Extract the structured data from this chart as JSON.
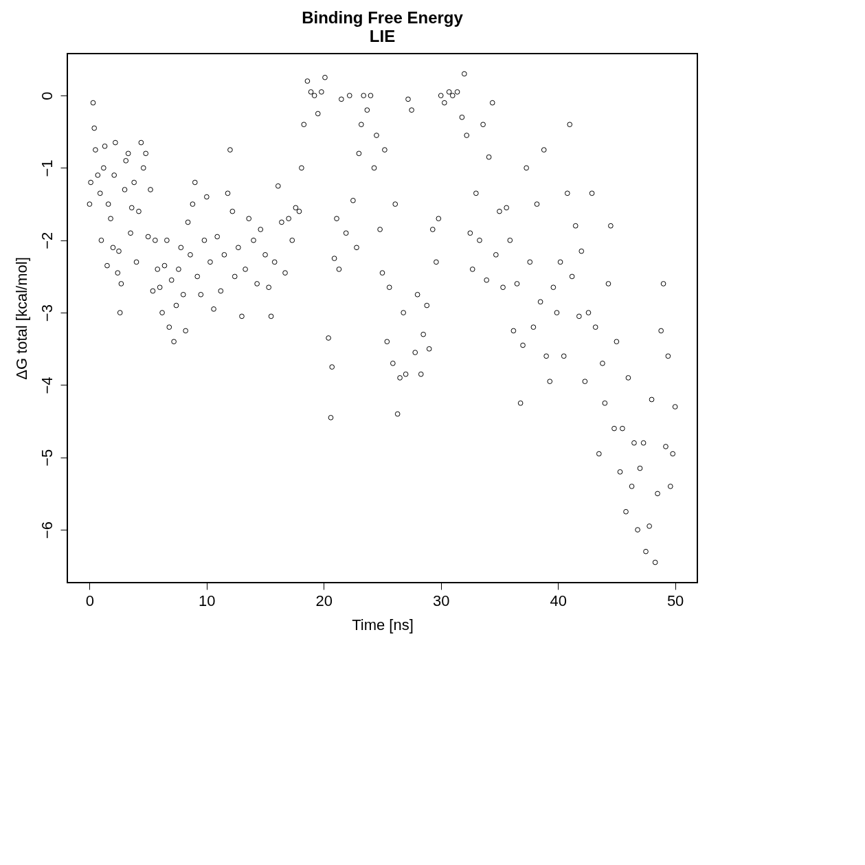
{
  "chart_data": {
    "type": "scatter",
    "title": "Binding Free Energy",
    "subtitle": "LIE",
    "xlabel": "Time [ns]",
    "ylabel": "ΔG total [kcal/mol]",
    "xlim": [
      -1.9,
      51.9
    ],
    "ylim": [
      -6.73,
      0.58
    ],
    "xticks": [
      0,
      10,
      20,
      30,
      40,
      50
    ],
    "yticks": [
      -6,
      -5,
      -4,
      -3,
      -2,
      -1,
      0
    ],
    "grid": false,
    "marker": "circle",
    "series": [
      {
        "color": "#000000",
        "x": [
          0,
          0.1,
          0.3,
          0.4,
          0.5,
          0.7,
          0.9,
          1,
          1.2,
          1.3,
          1.5,
          1.6,
          1.8,
          2,
          2.1,
          2.2,
          2.4,
          2.5,
          2.6,
          2.7,
          3.0,
          3.1,
          3.3,
          3.5,
          3.6,
          3.8,
          4.0,
          4.2,
          4.4,
          4.6,
          4.8,
          5,
          5.2,
          5.4,
          5.6,
          5.8,
          6.0,
          6.2,
          6.4,
          6.6,
          6.8,
          7.0,
          7.2,
          7.4,
          7.6,
          7.8,
          8.0,
          8.2,
          8.4,
          8.6,
          8.8,
          9.0,
          9.2,
          9.5,
          9.8,
          10,
          10.3,
          10.6,
          10.9,
          11.2,
          11.5,
          11.8,
          12,
          12.2,
          12.4,
          12.7,
          13,
          13.3,
          13.6,
          14,
          14.3,
          14.6,
          15,
          15.3,
          15.5,
          15.8,
          16.1,
          16.4,
          16.7,
          17,
          17.3,
          17.6,
          17.9,
          18.1,
          18.3,
          18.6,
          18.9,
          19.2,
          19.5,
          19.8,
          20.1,
          20.4,
          20.6,
          20.7,
          20.9,
          21.1,
          21.3,
          21.5,
          21.9,
          22.2,
          22.5,
          22.8,
          23,
          23.2,
          23.4,
          23.7,
          24,
          24.3,
          24.5,
          24.8,
          25,
          25.2,
          25.4,
          25.6,
          25.9,
          26.1,
          26.3,
          26.5,
          26.8,
          27,
          27.2,
          27.5,
          27.8,
          28,
          28.3,
          28.5,
          28.8,
          29,
          29.3,
          29.6,
          29.8,
          30,
          30.3,
          30.7,
          31,
          31.4,
          31.8,
          32,
          32.2,
          32.5,
          32.7,
          33,
          33.3,
          33.6,
          33.9,
          34.1,
          34.4,
          34.7,
          35,
          35.3,
          35.6,
          35.9,
          36.2,
          36.5,
          36.8,
          37,
          37.3,
          37.6,
          37.9,
          38.2,
          38.5,
          38.8,
          39.0,
          39.3,
          39.6,
          39.9,
          40.2,
          40.5,
          40.8,
          41,
          41.2,
          41.5,
          41.8,
          42,
          42.3,
          42.6,
          42.9,
          43.2,
          43.5,
          43.8,
          44.0,
          44.3,
          44.5,
          44.8,
          45.0,
          45.3,
          45.5,
          45.8,
          46.0,
          46.3,
          46.5,
          46.8,
          47.0,
          47.3,
          47.5,
          47.8,
          48.0,
          48.3,
          48.5,
          48.8,
          49,
          49.2,
          49.4,
          49.6,
          49.8,
          50
        ],
        "values": [
          -1.5,
          -1.2,
          -0.1,
          -0.45,
          -0.75,
          -1.1,
          -1.35,
          -2.0,
          -1.0,
          -0.7,
          -2.35,
          -1.5,
          -1.7,
          -2.1,
          -1.1,
          -0.65,
          -2.45,
          -2.15,
          -3.0,
          -2.6,
          -1.3,
          -0.9,
          -0.8,
          -1.9,
          -1.55,
          -1.2,
          -2.3,
          -1.6,
          -0.65,
          -1.0,
          -0.8,
          -1.95,
          -1.3,
          -2.7,
          -2.0,
          -2.4,
          -2.65,
          -3.0,
          -2.35,
          -2.0,
          -3.2,
          -2.55,
          -3.4,
          -2.9,
          -2.4,
          -2.1,
          -2.75,
          -3.25,
          -1.75,
          -2.2,
          -1.5,
          -1.2,
          -2.5,
          -2.75,
          -2.0,
          -1.4,
          -2.3,
          -2.95,
          -1.95,
          -2.7,
          -2.2,
          -1.35,
          -0.75,
          -1.6,
          -2.5,
          -2.1,
          -3.05,
          -2.4,
          -1.7,
          -2.0,
          -2.6,
          -1.85,
          -2.2,
          -2.65,
          -3.05,
          -2.3,
          -1.25,
          -1.75,
          -2.45,
          -1.7,
          -2.0,
          -1.55,
          -1.6,
          -1.0,
          -0.4,
          0.2,
          0.05,
          0.0,
          -0.25,
          0.05,
          0.25,
          -3.35,
          -4.45,
          -3.75,
          -2.25,
          -1.7,
          -2.4,
          -0.05,
          -1.9,
          0.0,
          -1.45,
          -2.1,
          -0.8,
          -0.4,
          0.0,
          -0.2,
          0.0,
          -1.0,
          -0.55,
          -1.85,
          -2.45,
          -0.75,
          -3.4,
          -2.65,
          -3.7,
          -1.5,
          -4.4,
          -3.9,
          -3.0,
          -3.85,
          -0.05,
          -0.2,
          -3.55,
          -2.75,
          -3.85,
          -3.3,
          -2.9,
          -3.5,
          -1.85,
          -2.3,
          -1.7,
          0.0,
          -0.1,
          0.05,
          0.0,
          0.05,
          -0.3,
          0.3,
          -0.55,
          -1.9,
          -2.4,
          -1.35,
          -2.0,
          -0.4,
          -2.55,
          -0.85,
          -0.1,
          -2.2,
          -1.6,
          -2.65,
          -1.55,
          -2.0,
          -3.25,
          -2.6,
          -4.25,
          -3.45,
          -1.0,
          -2.3,
          -3.2,
          -1.5,
          -2.85,
          -0.75,
          -3.6,
          -3.95,
          -2.65,
          -3.0,
          -2.3,
          -3.6,
          -1.35,
          -0.4,
          -2.5,
          -1.8,
          -3.05,
          -2.15,
          -3.95,
          -3.0,
          -1.35,
          -3.2,
          -4.95,
          -3.7,
          -4.25,
          -2.6,
          -1.8,
          -4.6,
          -3.4,
          -5.2,
          -4.6,
          -5.75,
          -3.9,
          -5.4,
          -4.8,
          -6.0,
          -5.15,
          -4.8,
          -6.3,
          -5.95,
          -4.2,
          -6.45,
          -5.5,
          -3.25,
          -2.6,
          -4.85,
          -3.6,
          -5.4,
          -4.95,
          -4.3
        ]
      }
    ]
  }
}
